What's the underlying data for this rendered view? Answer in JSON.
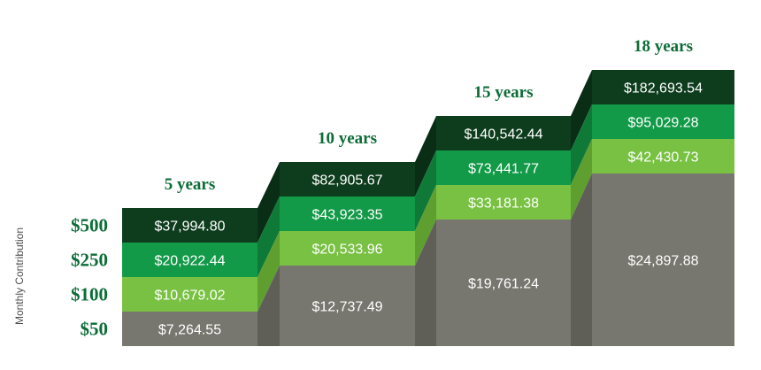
{
  "chart_data": {
    "type": "bar",
    "stacked": false,
    "ylabel": "Monthly Contribution",
    "rows": [
      "$50",
      "$100",
      "$250",
      "$500"
    ],
    "categories": [
      "5 years",
      "10 years",
      "15 years",
      "18 years"
    ],
    "series": [
      {
        "name": "$50",
        "values": [
          7264.55,
          12737.49,
          19761.24,
          24897.88
        ],
        "labels": [
          "$7,264.55",
          "$12,737.49",
          "$19,761.24",
          "$24,897.88"
        ]
      },
      {
        "name": "$100",
        "values": [
          10679.02,
          20533.96,
          33181.38,
          42430.73
        ],
        "labels": [
          "$10,679.02",
          "$20,533.96",
          "$33,181.38",
          "$42,430.73"
        ]
      },
      {
        "name": "$250",
        "values": [
          20922.44,
          43923.35,
          73441.77,
          95029.28
        ],
        "labels": [
          "$20,922.44",
          "$43,923.35",
          "$73,441.77",
          "$95,029.28"
        ]
      },
      {
        "name": "$500",
        "values": [
          37994.8,
          82905.67,
          140542.44,
          182693.54
        ],
        "labels": [
          "$37,994.80",
          "$82,905.67",
          "$140,542.44",
          "$182,693.54"
        ]
      }
    ],
    "grid": false,
    "legend": "none",
    "colors": {
      "$50": {
        "front": "#77776f",
        "side": "#5f5f58"
      },
      "$100": {
        "front": "#78c142",
        "side": "#5e9f30"
      },
      "$250": {
        "front": "#139a48",
        "side": "#0f7a38"
      },
      "$500": {
        "front": "#0e3d1e",
        "side": "#0a2d16"
      },
      "label_text": "#ffffff",
      "heading_text": "#0c6d37",
      "row_label_text": "#0c6d37",
      "axis_label_text": "#4d4d4d"
    }
  }
}
